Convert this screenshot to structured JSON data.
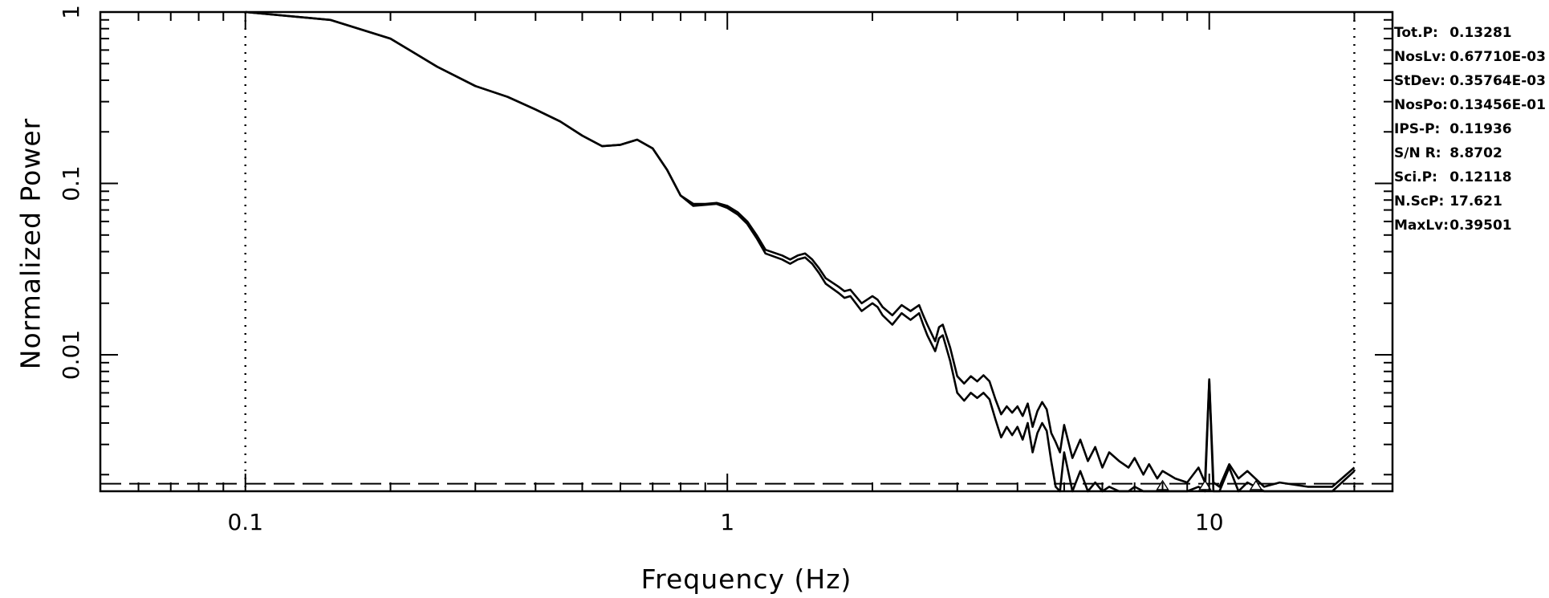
{
  "chart_data": {
    "type": "line",
    "xlabel": "Frequency (Hz)",
    "ylabel": "Normalized Power",
    "xscale": "log",
    "yscale": "log",
    "xlim": [
      0.05,
      24
    ],
    "ylim": [
      0.0016,
      1
    ],
    "grid": false,
    "x_ticks": [
      {
        "value": 0.1,
        "label": "0.1"
      },
      {
        "value": 1,
        "label": "1"
      },
      {
        "value": 10,
        "label": "10"
      }
    ],
    "y_ticks": [
      {
        "value": 1,
        "label": "1"
      },
      {
        "value": 0.1,
        "label": "0.1"
      },
      {
        "value": 0.01,
        "label": "0.01"
      }
    ],
    "reference_lines": {
      "vertical_dotted": [
        0.1,
        20
      ],
      "horizontal_dashed": 0.00177
    },
    "series": [
      {
        "x": [
          0.1,
          0.15,
          0.2,
          0.25,
          0.3,
          0.35,
          0.4,
          0.45,
          0.5,
          0.55,
          0.6,
          0.65,
          0.7,
          0.75,
          0.8,
          0.85,
          0.9,
          0.95,
          1.0,
          1.05,
          1.1,
          1.15,
          1.2,
          1.3,
          1.35,
          1.4,
          1.45,
          1.5,
          1.55,
          1.6,
          1.7,
          1.75,
          1.8,
          1.9,
          1.95,
          2.0,
          2.05,
          2.1,
          2.2,
          2.3,
          2.4,
          2.5,
          2.55,
          2.6,
          2.7,
          2.75,
          2.8,
          2.9,
          3.0,
          3.1,
          3.2,
          3.3,
          3.4,
          3.5,
          3.6,
          3.7,
          3.8,
          3.9,
          4.0,
          4.1,
          4.2,
          4.3,
          4.4,
          4.5,
          4.6,
          4.7,
          4.8,
          4.9,
          5.0,
          5.2,
          5.4,
          5.6,
          5.8,
          6.0,
          6.2,
          6.5,
          6.8,
          7.0,
          7.3,
          7.5,
          7.8,
          8.0,
          8.5,
          9.0,
          9.5,
          9.8,
          10.0,
          10.2,
          10.5,
          11.0,
          11.5,
          12.0,
          13.0,
          14.0,
          16.0,
          18.0,
          20.0
        ],
        "y": [
          1.0,
          0.9,
          0.7,
          0.48,
          0.37,
          0.32,
          0.27,
          0.23,
          0.19,
          0.165,
          0.168,
          0.18,
          0.16,
          0.12,
          0.085,
          0.076,
          0.076,
          0.077,
          0.074,
          0.068,
          0.06,
          0.05,
          0.041,
          0.038,
          0.036,
          0.038,
          0.039,
          0.036,
          0.032,
          0.028,
          0.025,
          0.0235,
          0.024,
          0.02,
          0.021,
          0.022,
          0.021,
          0.019,
          0.017,
          0.0195,
          0.018,
          0.0195,
          0.017,
          0.015,
          0.012,
          0.0145,
          0.015,
          0.011,
          0.0075,
          0.0068,
          0.0075,
          0.007,
          0.0076,
          0.007,
          0.0055,
          0.0045,
          0.005,
          0.0046,
          0.005,
          0.0044,
          0.0052,
          0.0038,
          0.0047,
          0.0053,
          0.0048,
          0.0035,
          0.0031,
          0.0027,
          0.0039,
          0.0025,
          0.0032,
          0.0024,
          0.0029,
          0.0022,
          0.0027,
          0.0024,
          0.0022,
          0.0025,
          0.002,
          0.0023,
          0.0019,
          0.0021,
          0.0019,
          0.0018,
          0.0022,
          0.0018,
          0.0072,
          0.0018,
          0.0017,
          0.0023,
          0.0019,
          0.0021,
          0.0017,
          0.0018,
          0.0017,
          0.0017,
          0.0022
        ]
      },
      {
        "x": [
          0.1,
          0.15,
          0.2,
          0.25,
          0.3,
          0.35,
          0.4,
          0.45,
          0.5,
          0.55,
          0.6,
          0.65,
          0.7,
          0.75,
          0.8,
          0.85,
          0.9,
          0.95,
          1.0,
          1.05,
          1.1,
          1.15,
          1.2,
          1.3,
          1.35,
          1.4,
          1.45,
          1.5,
          1.55,
          1.6,
          1.7,
          1.75,
          1.8,
          1.9,
          1.95,
          2.0,
          2.05,
          2.1,
          2.2,
          2.3,
          2.4,
          2.5,
          2.55,
          2.6,
          2.7,
          2.75,
          2.8,
          2.9,
          3.0,
          3.1,
          3.2,
          3.3,
          3.4,
          3.5,
          3.6,
          3.7,
          3.8,
          3.9,
          4.0,
          4.1,
          4.2,
          4.3,
          4.4,
          4.5,
          4.6,
          4.7,
          4.8,
          4.9,
          5.0,
          5.2,
          5.4,
          5.6,
          5.8,
          6.0,
          6.2,
          6.5,
          6.8,
          7.0,
          7.3,
          7.5,
          7.8,
          8.0,
          8.5,
          9.0,
          9.5,
          9.8,
          10.0,
          10.2,
          10.5,
          11.0,
          11.5,
          12.0,
          13.0,
          14.0,
          16.0,
          18.0,
          20.0
        ],
        "y": [
          1.0,
          0.9,
          0.7,
          0.48,
          0.37,
          0.32,
          0.27,
          0.23,
          0.19,
          0.165,
          0.168,
          0.18,
          0.16,
          0.12,
          0.085,
          0.074,
          0.075,
          0.076,
          0.072,
          0.066,
          0.058,
          0.048,
          0.039,
          0.036,
          0.034,
          0.036,
          0.037,
          0.034,
          0.03,
          0.026,
          0.023,
          0.0215,
          0.022,
          0.018,
          0.019,
          0.02,
          0.019,
          0.017,
          0.015,
          0.0175,
          0.016,
          0.0175,
          0.015,
          0.013,
          0.0105,
          0.0125,
          0.013,
          0.0092,
          0.006,
          0.0054,
          0.006,
          0.0056,
          0.006,
          0.0055,
          0.0042,
          0.0033,
          0.0038,
          0.0034,
          0.0038,
          0.0032,
          0.004,
          0.0027,
          0.0035,
          0.004,
          0.0036,
          0.0024,
          0.0017,
          0.0016,
          0.0027,
          0.0016,
          0.0021,
          0.0016,
          0.0018,
          0.0016,
          0.0017,
          0.0016,
          0.0016,
          0.0017,
          0.0016,
          0.0016,
          0.0016,
          0.0016,
          0.0016,
          0.0016,
          0.0017,
          0.0016,
          0.0071,
          0.0016,
          0.0016,
          0.0022,
          0.0016,
          0.0018,
          0.0016,
          0.0016,
          0.0016,
          0.0016,
          0.0021
        ]
      }
    ],
    "markers": {
      "shape": "open-triangle",
      "x": [
        8.0,
        9.8,
        12.5
      ]
    }
  },
  "stats": [
    {
      "label": "Tot.P:",
      "value": "0.13281"
    },
    {
      "label": "NosLv:",
      "value": "0.67710E-03"
    },
    {
      "label": "StDev:",
      "value": "0.35764E-03"
    },
    {
      "label": "NosPo:",
      "value": "0.13456E-01"
    },
    {
      "label": "IPS-P:",
      "value": "0.11936"
    },
    {
      "label": "S/N R:",
      "value": "8.8702"
    },
    {
      "label": "Sci.P:",
      "value": "0.12118"
    },
    {
      "label": "N.ScP:",
      "value": "17.621"
    },
    {
      "label": "MaxLv:",
      "value": "0.39501"
    }
  ]
}
